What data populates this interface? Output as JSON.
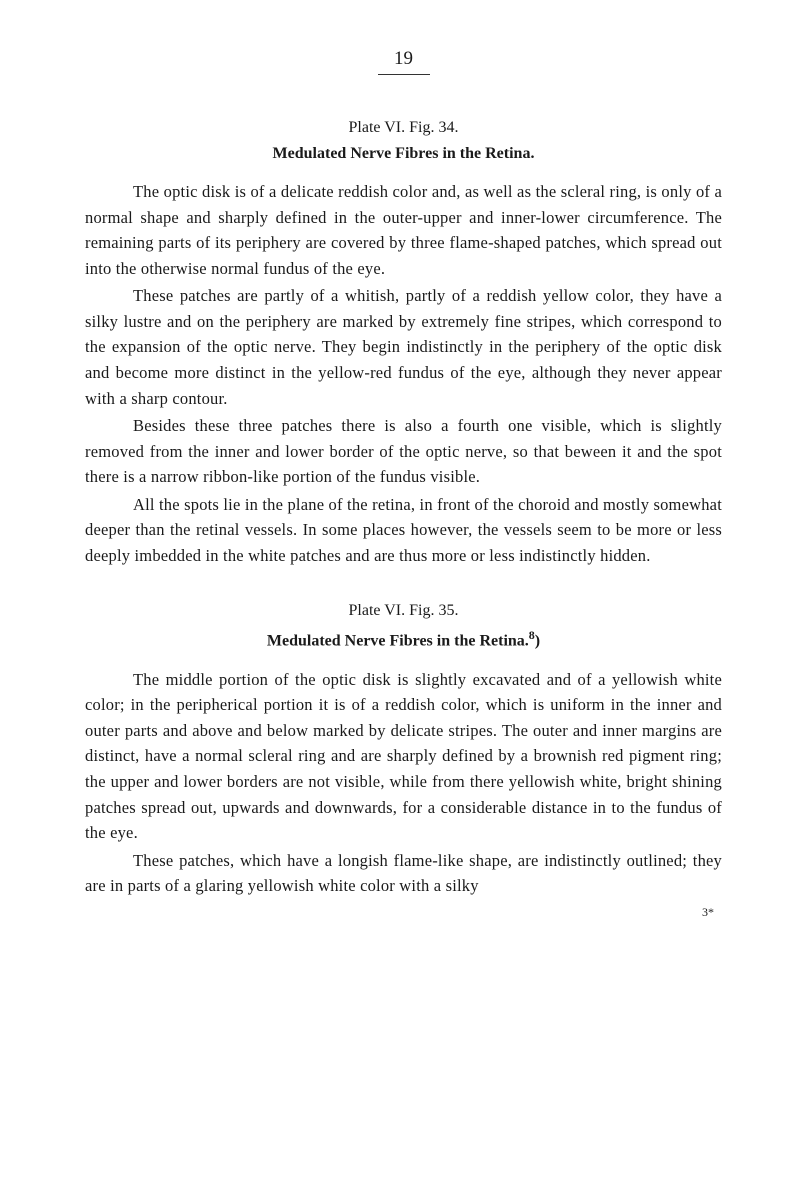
{
  "page": {
    "number": "19"
  },
  "section1": {
    "plateLabel": "Plate VI. Fig. 34.",
    "title": "Medulated Nerve Fibres in the Retina.",
    "para1": "The optic disk is of a delicate reddish color and, as well as the scleral ring, is only of a normal shape and sharply defined in the outer-upper and inner-lower circumference. The remaining parts of its periphery are covered by three flame-shaped patches, which spread out into the otherwise normal fundus of the eye.",
    "para2": "These patches are partly of a whitish, partly of a reddish yellow color, they have a silky lustre and on the periphery are marked by extremely fine stripes, which correspond to the expansion of the optic nerve. They begin indistinctly in the periphery of the optic disk and become more distinct in the yellow-red fundus of the eye, although they never appear with a sharp contour.",
    "para3": "Besides these three patches there is also a fourth one visible, which is slightly removed from the inner and lower border of the optic nerve, so that beween it and the spot there is a narrow ribbon-like portion of the fundus visible.",
    "para4": "All the spots lie in the plane of the retina, in front of the choroid and mostly somewhat deeper than the retinal vessels. In some places however, the vessels seem to be more or less deeply imbedded in the white patches and are thus more or less indistinctly hidden."
  },
  "section2": {
    "plateLabel": "Plate VI. Fig. 35.",
    "titlePrefix": "Medulated Nerve Fibres in the Retina.",
    "titleSuperscript": "8",
    "titleSuffix": ")",
    "para1": "The middle portion of the optic disk is slightly excavated and of a yellowish white color; in the peripherical portion it is of a reddish color, which is uniform in the inner and outer parts and above and below marked by delicate stripes. The outer and inner margins are distinct, have a normal scleral ring and are sharply defined by a brownish red pigment ring; the upper and lower borders are not visible, while from there yellowish white, bright shining patches spread out, upwards and downwards, for a considerable distance in to the fundus of the eye.",
    "para2": "These patches, which have a longish flame-like shape, are indistinctly outlined; they are in parts of a glaring yellowish white color with a silky"
  },
  "bottomMark": "3*"
}
